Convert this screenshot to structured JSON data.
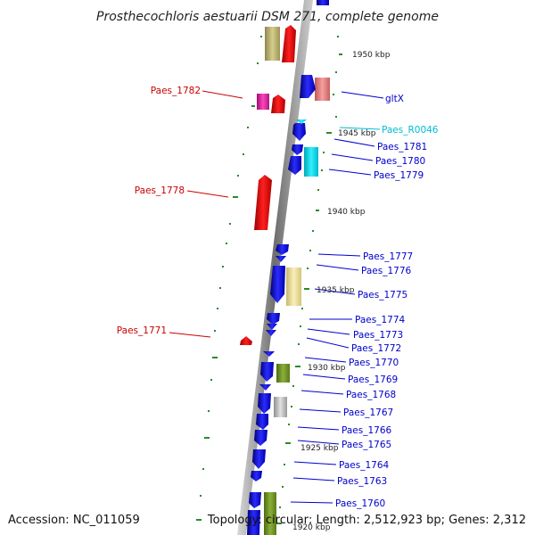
{
  "header": {
    "title": "Prosthecochloris aestuarii DSM 271, complete genome"
  },
  "footer": {
    "accession": "Accession: NC_011059",
    "topology": "Topology: circular; Length: 2,512,923 bp; Genes: 2,312"
  },
  "colors": {
    "forward_gene": "#1a1aff",
    "reverse_gene": "#ff1a1a",
    "rna_gene": "#00e5ff",
    "gc_olive": "#7f9a2a",
    "gc_khaki": "#c8c07a",
    "gc_pink": "#f08c8c",
    "gc_yellow": "#f5e6a0",
    "gc_gray": "#c8c8c8",
    "gc_magenta": "#e82aa6",
    "tick_marks": "#2a8a2a",
    "backbone": "#888888"
  },
  "scale_labels": [
    "1950 kbp",
    "1945 kbp",
    "1940 kbp",
    "1935 kbp",
    "1930 kbp",
    "1925 kbp",
    "1920 kbp"
  ],
  "gene_labels": {
    "left": [
      "Paes_1782",
      "Paes_1778",
      "Paes_1771"
    ],
    "right": [
      "gltX",
      "Paes_R0046",
      "Paes_1781",
      "Paes_1780",
      "Paes_1779",
      "Paes_1777",
      "Paes_1776",
      "Paes_1775",
      "Paes_1774",
      "Paes_1773",
      "Paes_1772",
      "Paes_1770",
      "Paes_1769",
      "Paes_1768",
      "Paes_1767",
      "Paes_1766",
      "Paes_1765",
      "Paes_1764",
      "Paes_1763",
      "Paes_1760"
    ]
  }
}
